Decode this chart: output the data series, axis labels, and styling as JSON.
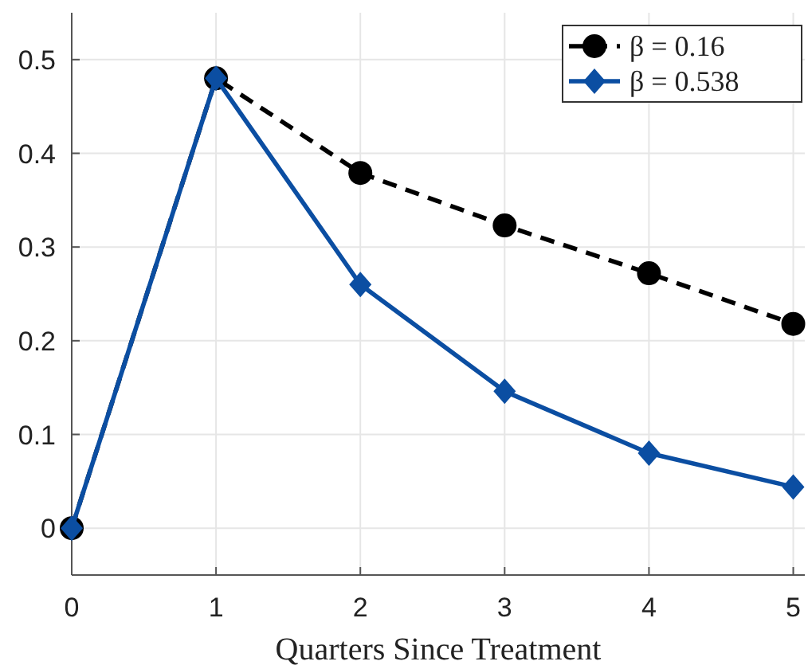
{
  "chart_data": {
    "type": "line",
    "xlabel": "Quarters Since Treatment",
    "x": [
      0,
      1,
      2,
      3,
      4,
      5
    ],
    "series": [
      {
        "name": "β = 0.16",
        "color": "#000000",
        "values": [
          0,
          0.48,
          0.379,
          0.323,
          0.272,
          0.218
        ],
        "marker": "circle",
        "line_style": "dashed"
      },
      {
        "name": "β = 0.538",
        "color": "#0b4ea2",
        "values": [
          0,
          0.48,
          0.26,
          0.146,
          0.08,
          0.044
        ],
        "marker": "diamond",
        "line_style": "solid"
      }
    ],
    "xlim": [
      0,
      5.08
    ],
    "xticks": [
      0,
      1,
      2,
      3,
      4,
      5
    ],
    "ylim": [
      -0.05,
      0.55
    ],
    "yticks": [
      0,
      0.1,
      0.2,
      0.3,
      0.4,
      0.5
    ],
    "grid": true,
    "legend": "top right"
  }
}
